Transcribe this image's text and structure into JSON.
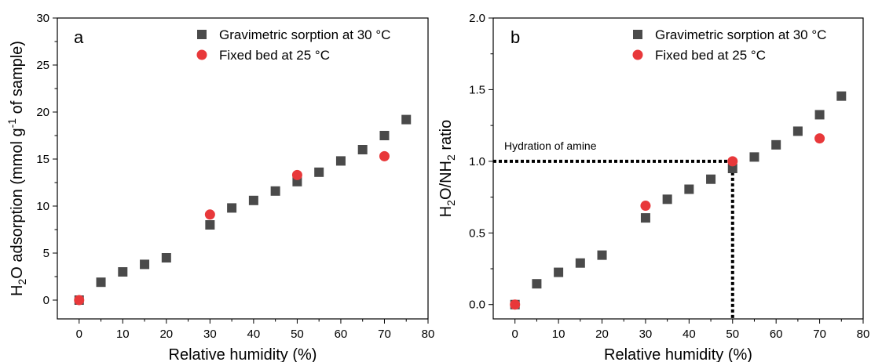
{
  "chart_data": [
    {
      "type": "scatter",
      "panel_label": "a",
      "xlabel": "Relative humidity (%)",
      "ylabel": {
        "pre": "H",
        "sub1": "2",
        "mid": "O adsorption (mmol g",
        "sup": "-1",
        "post": " of sample)"
      },
      "xlim": [
        -5,
        80
      ],
      "ylim": [
        -2,
        30
      ],
      "xticks": [
        0,
        10,
        20,
        30,
        40,
        50,
        60,
        70,
        80
      ],
      "yticks": [
        0,
        5,
        10,
        15,
        20,
        25,
        30
      ],
      "grid": false,
      "legend_position": "top-right",
      "series": [
        {
          "name": "Gravimetric sorption at 30 °C",
          "marker": "square",
          "color": "#4a4a4a",
          "x": [
            0,
            5,
            10,
            15,
            20,
            30,
            35,
            40,
            45,
            50,
            55,
            60,
            65,
            70,
            75
          ],
          "y": [
            0.0,
            1.9,
            3.0,
            3.8,
            4.5,
            8.0,
            9.8,
            10.6,
            11.6,
            12.6,
            13.6,
            14.8,
            16.0,
            17.5,
            19.2
          ]
        },
        {
          "name": "Fixed bed at 25 °C",
          "marker": "circle",
          "color": "#e8383a",
          "x": [
            0,
            30,
            50,
            70
          ],
          "y": [
            0.0,
            9.1,
            13.3,
            15.3
          ]
        }
      ]
    },
    {
      "type": "scatter",
      "panel_label": "b",
      "xlabel": "Relative humidity (%)",
      "ylabel": {
        "pre": "H",
        "sub1": "2",
        "mid": "O/NH",
        "sub2": "2",
        "post": " ratio"
      },
      "xlim": [
        -5,
        80
      ],
      "ylim": [
        -0.1,
        2.0
      ],
      "xticks": [
        0,
        10,
        20,
        30,
        40,
        50,
        60,
        70,
        80
      ],
      "yticks": [
        0.0,
        0.5,
        1.0,
        1.5,
        2.0
      ],
      "ytick_labels": [
        "0.0",
        "0.5",
        "1.0",
        "1.5",
        "2.0"
      ],
      "grid": false,
      "legend_position": "top-right",
      "annotation": {
        "text": "Hydration of amine",
        "x": 50,
        "y": 1.0
      },
      "series": [
        {
          "name": "Gravimetric sorption at 30 °C",
          "marker": "square",
          "color": "#4a4a4a",
          "x": [
            0,
            5,
            10,
            15,
            20,
            30,
            35,
            40,
            45,
            50,
            55,
            60,
            65,
            70,
            75
          ],
          "y": [
            0.0,
            0.145,
            0.225,
            0.29,
            0.345,
            0.605,
            0.735,
            0.805,
            0.875,
            0.95,
            1.03,
            1.115,
            1.21,
            1.325,
            1.455
          ]
        },
        {
          "name": "Fixed bed at 25 °C",
          "marker": "circle",
          "color": "#e8383a",
          "x": [
            0,
            30,
            50,
            70
          ],
          "y": [
            0.0,
            0.69,
            1.0,
            1.16
          ]
        }
      ]
    }
  ]
}
